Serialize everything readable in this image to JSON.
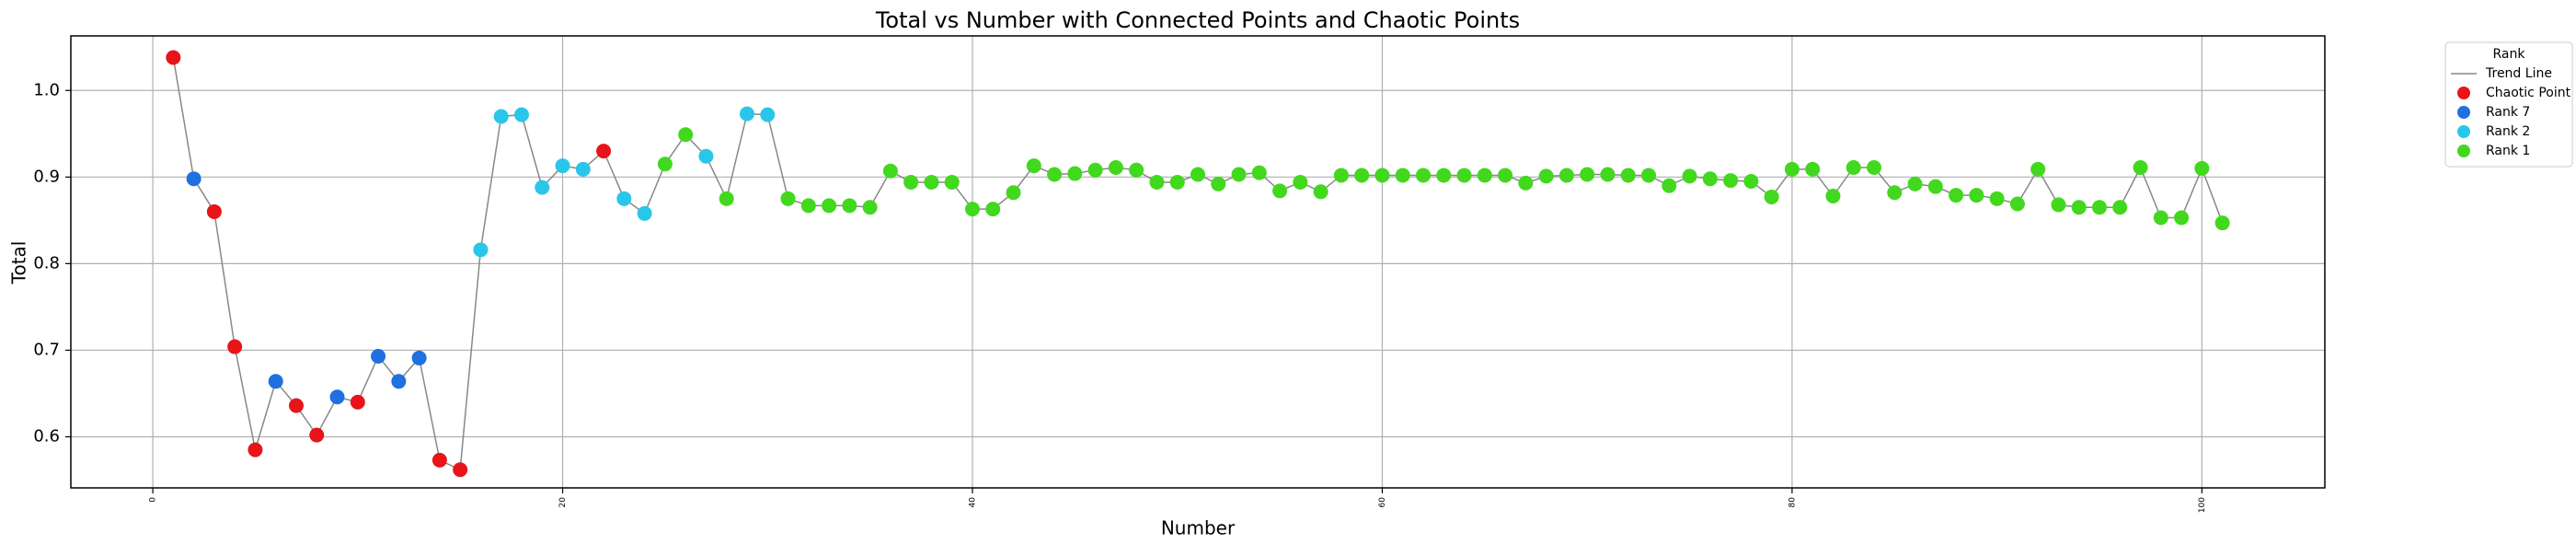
{
  "chart_data": {
    "type": "scatter",
    "title": "Total vs Number with Connected Points and Chaotic Points",
    "x_label": "Number",
    "y_label": "Total",
    "xlim": [
      -4,
      106
    ],
    "ylim": [
      0.541,
      1.063
    ],
    "xticks": [
      0,
      20,
      40,
      60,
      80,
      100
    ],
    "yticks": [
      0.6,
      0.7,
      0.8,
      0.9,
      {
        "value": 1,
        "label": "1.0"
      }
    ],
    "grid": true,
    "legend_title": "Rank",
    "legend_position": "right",
    "series": [
      {
        "name": "Trend Line",
        "color": "#888888",
        "style": "line",
        "x": [
          1,
          2,
          3,
          4,
          5,
          6,
          7,
          8,
          9,
          10,
          11,
          12,
          13,
          14,
          15,
          16,
          17,
          18,
          19,
          20,
          21,
          22,
          23,
          24,
          25,
          26,
          27,
          28,
          29,
          30,
          31,
          32,
          33,
          34,
          35,
          36,
          37,
          38,
          39,
          40,
          41,
          42,
          43,
          44,
          45,
          46,
          47,
          48,
          49,
          50,
          51,
          52,
          53,
          54,
          55,
          56,
          57,
          58,
          59,
          60,
          61,
          62,
          63,
          64,
          65,
          66,
          67,
          68,
          69,
          70,
          71,
          72,
          73,
          74,
          75,
          76,
          77,
          78,
          79,
          80,
          81,
          82,
          83,
          84,
          85,
          86,
          87,
          88,
          89,
          90,
          91,
          92,
          93,
          94,
          95,
          96,
          97,
          98,
          99,
          100,
          101
        ],
        "values": [
          1.038,
          0.898,
          0.86,
          0.704,
          0.585,
          0.664,
          0.636,
          0.602,
          0.646,
          0.64,
          0.693,
          0.664,
          0.691,
          0.573,
          0.562,
          0.816,
          0.97,
          0.972,
          0.888,
          0.913,
          0.909,
          0.93,
          0.875,
          0.858,
          0.915,
          0.949,
          0.924,
          0.875,
          0.973,
          0.972,
          0.875,
          0.867,
          0.867,
          0.867,
          0.865,
          0.907,
          0.894,
          0.894,
          0.894,
          0.863,
          0.863,
          0.882,
          0.913,
          0.903,
          0.904,
          0.908,
          0.911,
          0.908,
          0.894,
          0.894,
          0.903,
          0.892,
          0.903,
          0.905,
          0.884,
          0.894,
          0.883,
          0.902,
          0.902,
          0.902,
          0.902,
          0.902,
          0.902,
          0.902,
          0.902,
          0.902,
          0.893,
          0.901,
          0.902,
          0.903,
          0.903,
          0.902,
          0.902,
          0.89,
          0.901,
          0.898,
          0.896,
          0.895,
          0.877,
          0.909,
          0.909,
          0.878,
          0.911,
          0.911,
          0.882,
          0.892,
          0.889,
          0.879,
          0.879,
          0.875,
          0.869,
          0.909,
          0.868,
          0.865,
          0.865,
          0.865,
          0.911,
          0.853,
          0.853,
          0.91,
          0.847
        ]
      },
      {
        "name": "Chaotic Point",
        "color": "#e8141a",
        "style": "marker",
        "x": [
          1,
          3,
          4,
          5,
          7,
          8,
          10,
          14,
          15,
          22
        ],
        "values": [
          1.038,
          0.86,
          0.704,
          0.585,
          0.636,
          0.602,
          0.64,
          0.573,
          0.562,
          0.93
        ]
      },
      {
        "name": "Rank 7",
        "color": "#1f70e0",
        "style": "marker",
        "x": [
          2,
          6,
          9,
          11,
          12,
          13
        ],
        "values": [
          0.898,
          0.664,
          0.646,
          0.693,
          0.664,
          0.691
        ]
      },
      {
        "name": "Rank 2",
        "color": "#2ac6ea",
        "style": "marker",
        "x": [
          16,
          17,
          18,
          19,
          20,
          21,
          23,
          24,
          27,
          29,
          30
        ],
        "values": [
          0.816,
          0.97,
          0.972,
          0.888,
          0.913,
          0.909,
          0.875,
          0.858,
          0.924,
          0.973,
          0.972
        ]
      },
      {
        "name": "Rank 1",
        "color": "#42d81e",
        "style": "marker",
        "x": [
          25,
          26,
          28,
          31,
          32,
          33,
          34,
          35,
          36,
          37,
          38,
          39,
          40,
          41,
          42,
          43,
          44,
          45,
          46,
          47,
          48,
          49,
          50,
          51,
          52,
          53,
          54,
          55,
          56,
          57,
          58,
          59,
          60,
          61,
          62,
          63,
          64,
          65,
          66,
          67,
          68,
          69,
          70,
          71,
          72,
          73,
          74,
          75,
          76,
          77,
          78,
          79,
          80,
          81,
          82,
          83,
          84,
          85,
          86,
          87,
          88,
          89,
          90,
          91,
          92,
          93,
          94,
          95,
          96,
          97,
          98,
          99,
          100,
          101
        ],
        "values": [
          0.915,
          0.949,
          0.875,
          0.875,
          0.867,
          0.867,
          0.867,
          0.865,
          0.907,
          0.894,
          0.894,
          0.894,
          0.863,
          0.863,
          0.882,
          0.913,
          0.903,
          0.904,
          0.908,
          0.911,
          0.908,
          0.894,
          0.894,
          0.903,
          0.892,
          0.903,
          0.905,
          0.884,
          0.894,
          0.883,
          0.902,
          0.902,
          0.902,
          0.902,
          0.902,
          0.902,
          0.902,
          0.902,
          0.902,
          0.893,
          0.901,
          0.902,
          0.903,
          0.903,
          0.902,
          0.902,
          0.89,
          0.901,
          0.898,
          0.896,
          0.895,
          0.877,
          0.909,
          0.909,
          0.878,
          0.911,
          0.911,
          0.882,
          0.892,
          0.889,
          0.879,
          0.879,
          0.875,
          0.869,
          0.909,
          0.868,
          0.865,
          0.865,
          0.865,
          0.911,
          0.853,
          0.853,
          0.91,
          0.847
        ]
      }
    ]
  }
}
